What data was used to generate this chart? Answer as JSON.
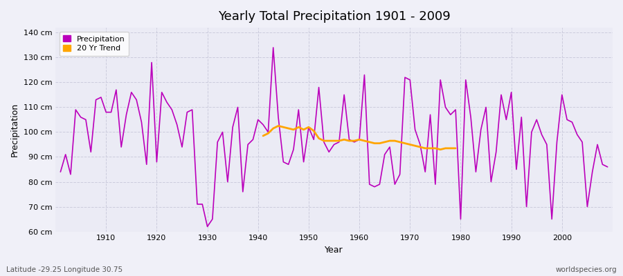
{
  "title": "Yearly Total Precipitation 1901 - 2009",
  "xlabel": "Year",
  "ylabel": "Precipitation",
  "footer_left": "Latitude -29.25 Longitude 30.75",
  "footer_right": "worldspecies.org",
  "ylim": [
    60,
    142
  ],
  "yticks": [
    60,
    70,
    80,
    90,
    100,
    110,
    120,
    130,
    140
  ],
  "ytick_labels": [
    "60 cm",
    "70 cm",
    "80 cm",
    "90 cm",
    "100 cm",
    "110 cm",
    "120 cm",
    "130 cm",
    "140 cm"
  ],
  "line_color": "#BB00BB",
  "trend_color": "#FFA500",
  "bg_color": "#F0F0F8",
  "plot_bg": "#EBEBF5",
  "legend_bg": "#FFFFFF",
  "years": [
    1901,
    1902,
    1903,
    1904,
    1905,
    1906,
    1907,
    1908,
    1909,
    1910,
    1911,
    1912,
    1913,
    1914,
    1915,
    1916,
    1917,
    1918,
    1919,
    1920,
    1921,
    1922,
    1923,
    1924,
    1925,
    1926,
    1927,
    1928,
    1929,
    1930,
    1931,
    1932,
    1933,
    1934,
    1935,
    1936,
    1937,
    1938,
    1939,
    1940,
    1941,
    1942,
    1943,
    1944,
    1945,
    1946,
    1947,
    1948,
    1949,
    1950,
    1951,
    1952,
    1953,
    1954,
    1955,
    1956,
    1957,
    1958,
    1959,
    1960,
    1961,
    1962,
    1963,
    1964,
    1965,
    1966,
    1967,
    1968,
    1969,
    1970,
    1971,
    1972,
    1973,
    1974,
    1975,
    1976,
    1977,
    1978,
    1979,
    1980,
    1981,
    1982,
    1983,
    1984,
    1985,
    1986,
    1987,
    1988,
    1989,
    1990,
    1991,
    1992,
    1993,
    1994,
    1995,
    1996,
    1997,
    1998,
    1999,
    2000,
    2001,
    2002,
    2003,
    2004,
    2005,
    2006,
    2007,
    2008,
    2009
  ],
  "precip": [
    84,
    91,
    83,
    109,
    106,
    105,
    92,
    113,
    114,
    108,
    108,
    117,
    94,
    107,
    116,
    113,
    104,
    87,
    128,
    88,
    116,
    112,
    109,
    103,
    94,
    108,
    109,
    71,
    71,
    62,
    65,
    96,
    100,
    80,
    102,
    110,
    76,
    95,
    97,
    105,
    103,
    100,
    134,
    106,
    88,
    87,
    93,
    109,
    88,
    102,
    97,
    118,
    96,
    92,
    95,
    96,
    115,
    97,
    96,
    97,
    123,
    79,
    78,
    79,
    91,
    94,
    79,
    83,
    122,
    121,
    101,
    95,
    84,
    107,
    79,
    121,
    110,
    107,
    109,
    65,
    121,
    106,
    84,
    101,
    110,
    80,
    92,
    115,
    105,
    116,
    85,
    106,
    70,
    100,
    105,
    99,
    95,
    65,
    96,
    115,
    105,
    104,
    99,
    96,
    70,
    84,
    95,
    87,
    86
  ],
  "trend_years": [
    1941,
    1942,
    1943,
    1944,
    1945,
    1946,
    1947,
    1948,
    1949,
    1950,
    1951,
    1952,
    1953,
    1954,
    1955,
    1956,
    1957,
    1958,
    1959,
    1960,
    1961,
    1962,
    1963,
    1964,
    1965,
    1966,
    1967,
    1968,
    1969,
    1970,
    1971,
    1972,
    1973,
    1974,
    1975,
    1976,
    1977,
    1978,
    1979
  ],
  "trend": [
    98.5,
    99.5,
    101.5,
    102.5,
    102.0,
    101.5,
    101.0,
    102.0,
    101.0,
    102.0,
    100.5,
    97.5,
    96.5,
    96.5,
    96.5,
    96.5,
    97.0,
    96.5,
    96.5,
    97.0,
    96.5,
    96.0,
    95.5,
    95.5,
    96.0,
    96.5,
    96.5,
    96.0,
    95.5,
    95.0,
    94.5,
    94.0,
    93.5,
    93.5,
    93.5,
    93.0,
    93.5,
    93.5,
    93.5
  ]
}
